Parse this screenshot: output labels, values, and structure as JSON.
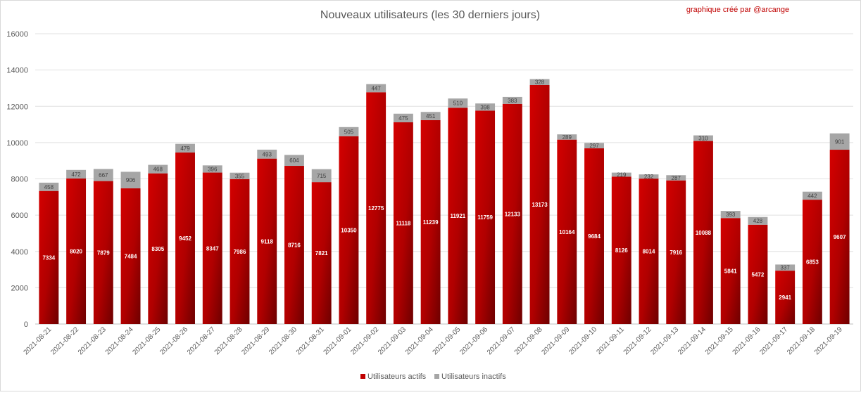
{
  "chart_data": {
    "type": "bar",
    "stacked": true,
    "title": "Nouveaux utilisateurs  (les 30 derniers  jours)",
    "credit": "graphique créé par @arcange",
    "xlabel": "",
    "ylabel": "",
    "ylim": [
      0,
      16000
    ],
    "yticks": [
      0,
      2000,
      4000,
      6000,
      8000,
      10000,
      12000,
      14000,
      16000
    ],
    "grid": true,
    "legend_position": "bottom",
    "categories": [
      "2021-08-21",
      "2021-08-22",
      "2021-08-23",
      "2021-08-24",
      "2021-08-25",
      "2021-08-26",
      "2021-08-27",
      "2021-08-28",
      "2021-08-29",
      "2021-08-30",
      "2021-08-31",
      "2021-09-01",
      "2021-09-02",
      "2021-09-03",
      "2021-09-04",
      "2021-09-05",
      "2021-09-06",
      "2021-09-07",
      "2021-09-08",
      "2021-09-09",
      "2021-09-10",
      "2021-09-11",
      "2021-09-12",
      "2021-09-13",
      "2021-09-14",
      "2021-09-15",
      "2021-09-16",
      "2021-09-17",
      "2021-09-18",
      "2021-09-19"
    ],
    "series": [
      {
        "name": "Utilisateurs actifs",
        "color": "#c00000",
        "values": [
          7334,
          8020,
          7879,
          7484,
          8305,
          9452,
          8347,
          7986,
          9118,
          8716,
          7821,
          10350,
          12775,
          11118,
          11239,
          11921,
          11759,
          12133,
          13173,
          10164,
          9684,
          8126,
          8014,
          7916,
          10088,
          5841,
          5472,
          2941,
          6853,
          9607
        ]
      },
      {
        "name": "Utilisateurs inactifs",
        "color": "#a6a6a6",
        "values": [
          458,
          472,
          667,
          906,
          468,
          479,
          396,
          355,
          493,
          604,
          715,
          505,
          447,
          475,
          451,
          510,
          398,
          383,
          328,
          289,
          297,
          219,
          232,
          287,
          310,
          393,
          428,
          337,
          442,
          901
        ]
      }
    ]
  }
}
